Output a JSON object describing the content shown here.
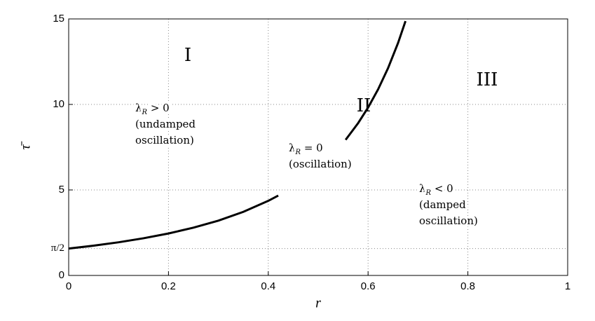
{
  "chart_data": {
    "type": "line",
    "xlabel": "r",
    "ylabel": "τ̄",
    "x": [
      0,
      0.05,
      0.1,
      0.15,
      0.2,
      0.25,
      0.3,
      0.35,
      0.4,
      0.42,
      0.49,
      0.555,
      0.58,
      0.6,
      0.62,
      0.64,
      0.66,
      0.675
    ],
    "series": [
      {
        "color": "#000000",
        "values": [
          1.571,
          1.74,
          1.939,
          2.174,
          2.454,
          2.793,
          3.206,
          3.718,
          4.363,
          4.669,
          null,
          7.93,
          8.905,
          9.817,
          10.878,
          12.12,
          13.589,
          14.87
        ]
      }
    ],
    "xlim": [
      0,
      1
    ],
    "ylim": [
      0,
      15
    ],
    "xticks": [
      0,
      0.2,
      0.4,
      0.6,
      0.8,
      1
    ],
    "yticks": [
      0,
      {
        "value": 1.5708,
        "label": "π/2"
      },
      5,
      10,
      15
    ],
    "grid": true,
    "regions": [
      "I",
      "II",
      "III"
    ],
    "annotations": [
      {
        "symbol": "λ",
        "subscript": "R",
        "relation": " > 0",
        "lines": [
          "(undamped",
          "oscillation)"
        ]
      },
      {
        "symbol": "λ",
        "subscript": "R",
        "relation": " = 0",
        "lines": [
          "(oscillation)"
        ]
      },
      {
        "symbol": "λ",
        "subscript": "R",
        "relation": " < 0",
        "lines": [
          "(damped",
          "oscillation)"
        ]
      }
    ]
  }
}
